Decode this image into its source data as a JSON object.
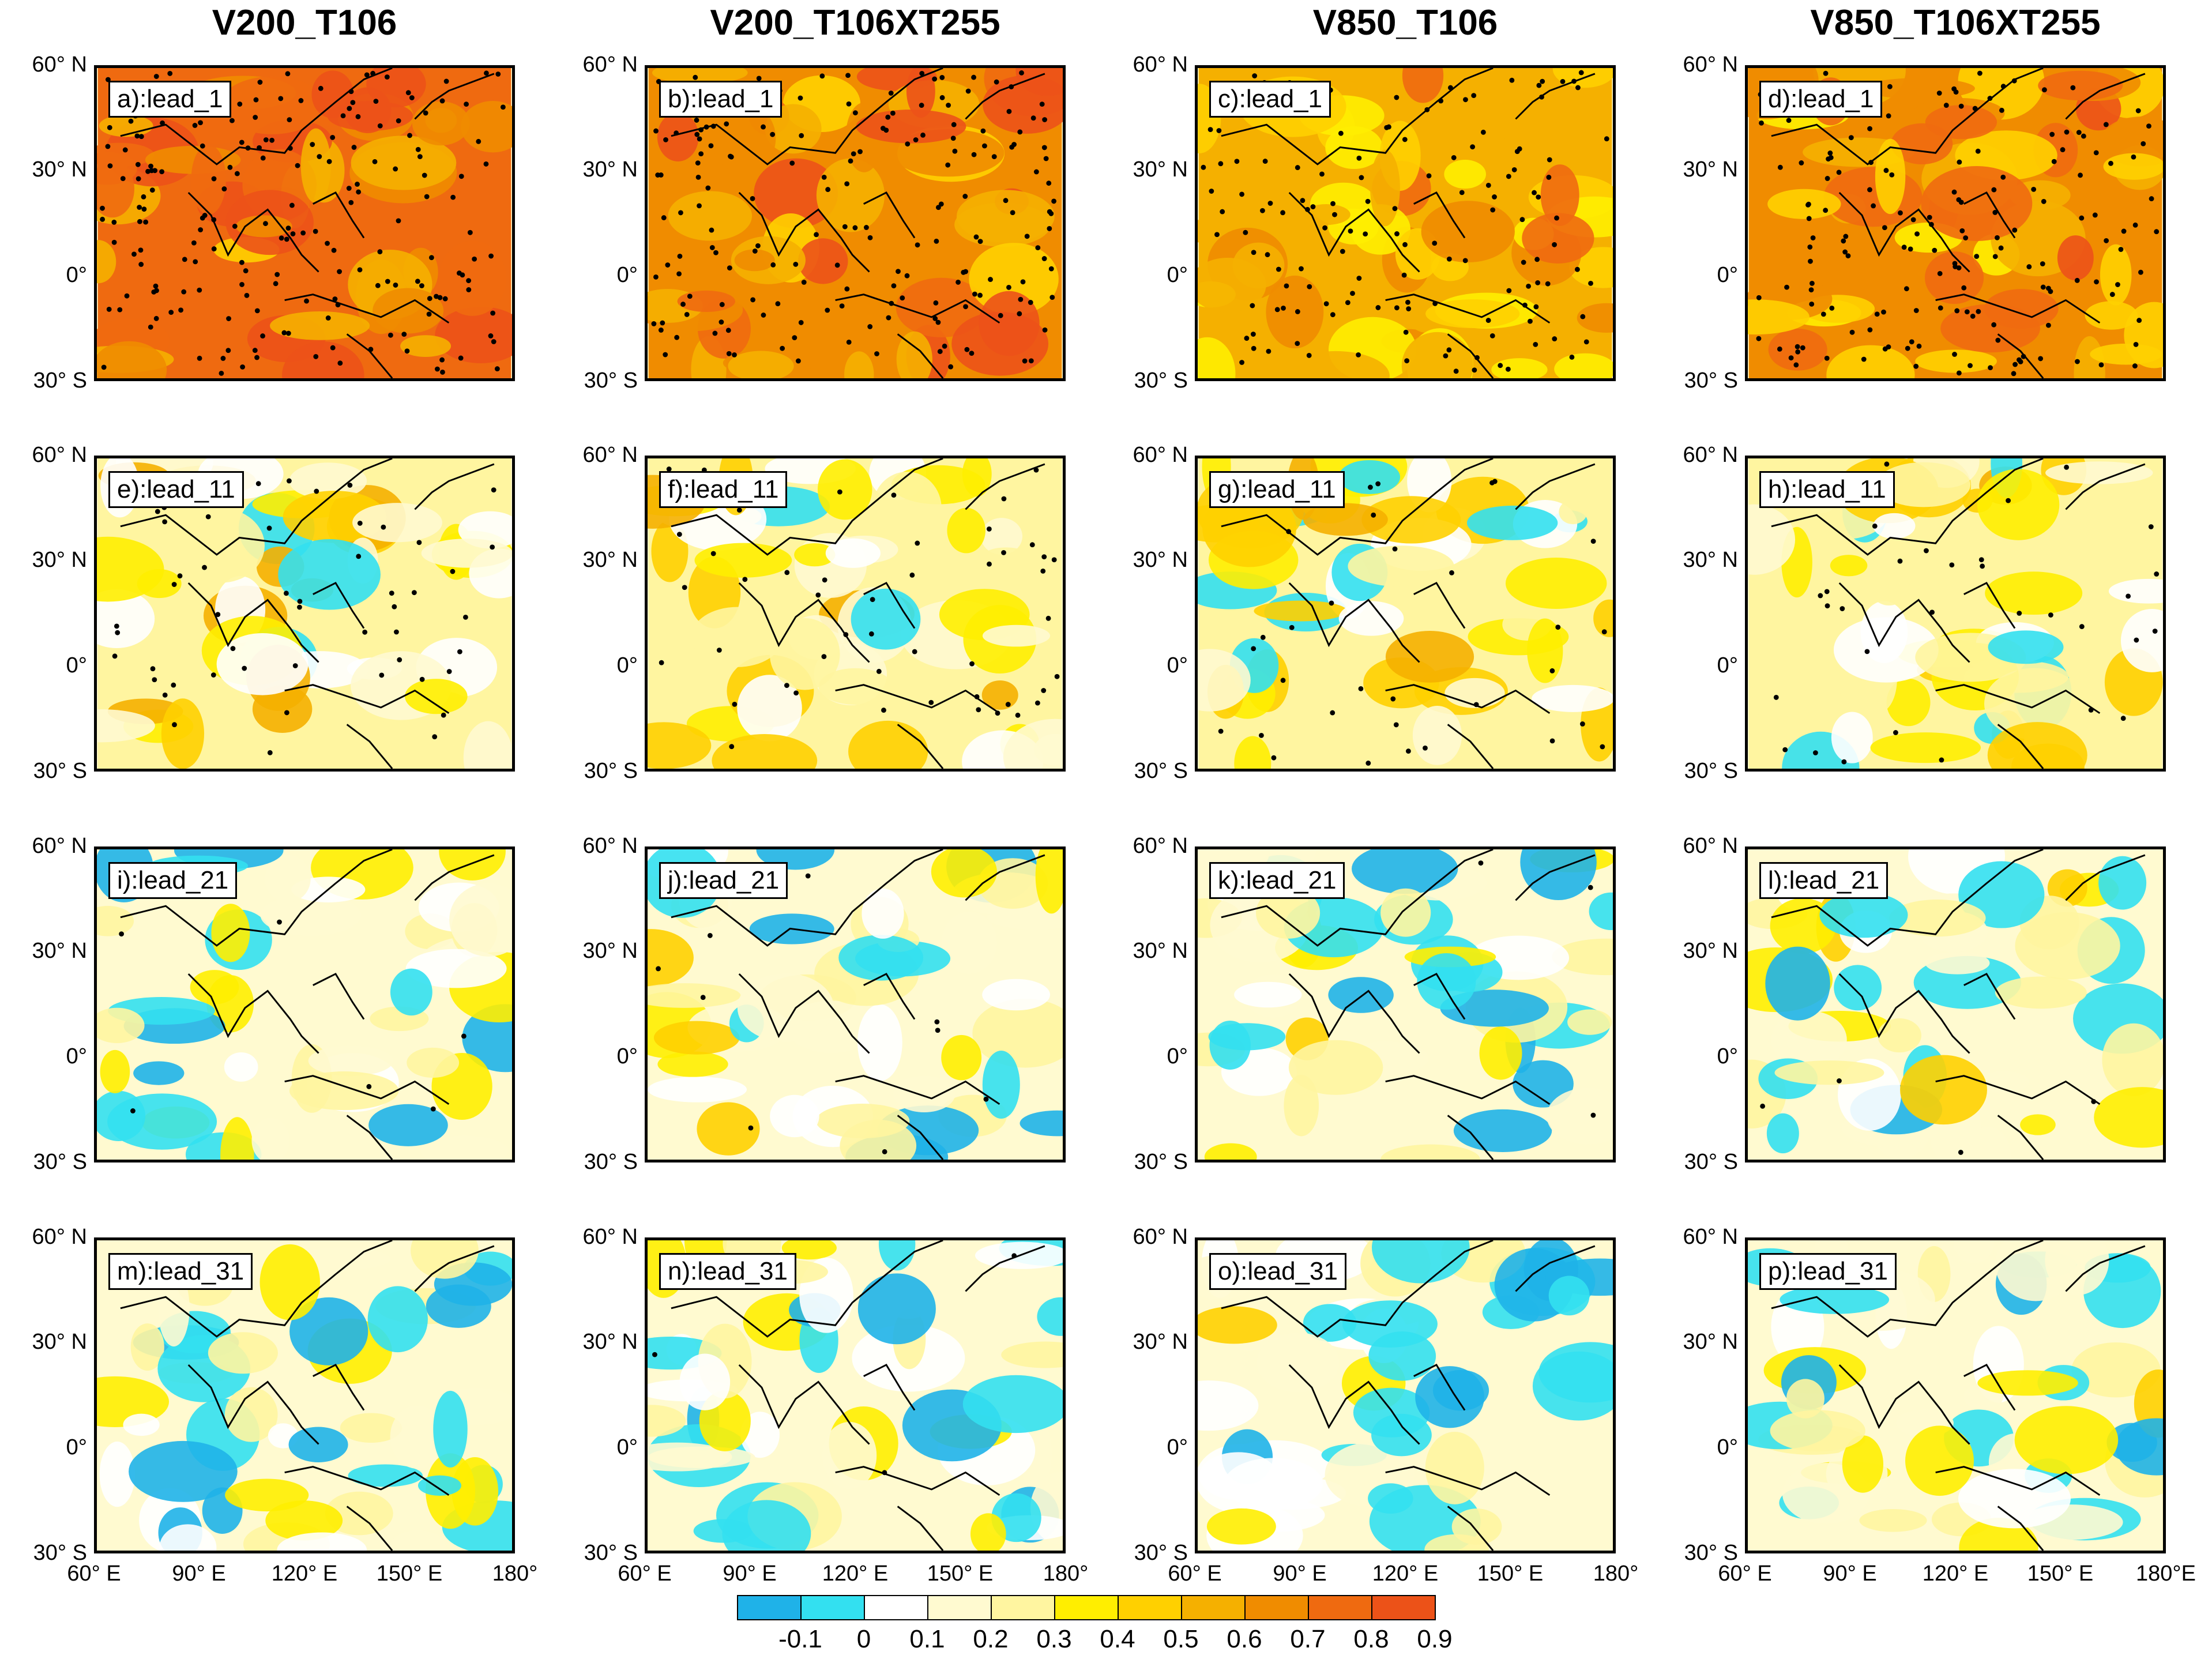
{
  "columns": [
    "V200_T106",
    "V200_T106XT255",
    "V850_T106",
    "V850_T106XT255"
  ],
  "panels": [
    {
      "label": "a):lead_1",
      "level": 0.72
    },
    {
      "label": "b):lead_1",
      "level": 0.68
    },
    {
      "label": "c):lead_1",
      "level": 0.55
    },
    {
      "label": "d):lead_1",
      "level": 0.62
    },
    {
      "label": "e):lead_11",
      "level": 0.28
    },
    {
      "label": "f):lead_11",
      "level": 0.27
    },
    {
      "label": "g):lead_11",
      "level": 0.22
    },
    {
      "label": "h):lead_11",
      "level": 0.22
    },
    {
      "label": "i):lead_21",
      "level": 0.14
    },
    {
      "label": "j):lead_21",
      "level": 0.15
    },
    {
      "label": "k):lead_21",
      "level": 0.13
    },
    {
      "label": "l):lead_21",
      "level": 0.14
    },
    {
      "label": "m):lead_31",
      "level": 0.12
    },
    {
      "label": "n):lead_31",
      "level": 0.13
    },
    {
      "label": "o):lead_31",
      "level": 0.12
    },
    {
      "label": "p):lead_31",
      "level": 0.11
    }
  ],
  "lat_labels": [
    "60° N",
    "30° N",
    "0°",
    "30° S"
  ],
  "lon_labels_by_column": [
    [
      "60° E",
      "90° E",
      "120° E",
      "150° E",
      "180°"
    ],
    [
      "60° E",
      "90° E",
      "120° E",
      "150° E",
      "180°"
    ],
    [
      "60° E",
      "90° E",
      "120° E",
      "150° E",
      "180°"
    ],
    [
      "60° E",
      "90° E",
      "120° E",
      "150° E",
      "180°E"
    ]
  ],
  "colorbar": {
    "labels": [
      "-0.1",
      "0",
      "0.1",
      "0.2",
      "0.3",
      "0.4",
      "0.5",
      "0.6",
      "0.7",
      "0.8",
      "0.9"
    ],
    "colors": [
      "#1fb2e8",
      "#33e0f0",
      "#ffffff",
      "#fffad0",
      "#fff5a0",
      "#ffee00",
      "#ffd000",
      "#f5b000",
      "#f08c00",
      "#ef6a10",
      "#ec5218"
    ]
  }
}
